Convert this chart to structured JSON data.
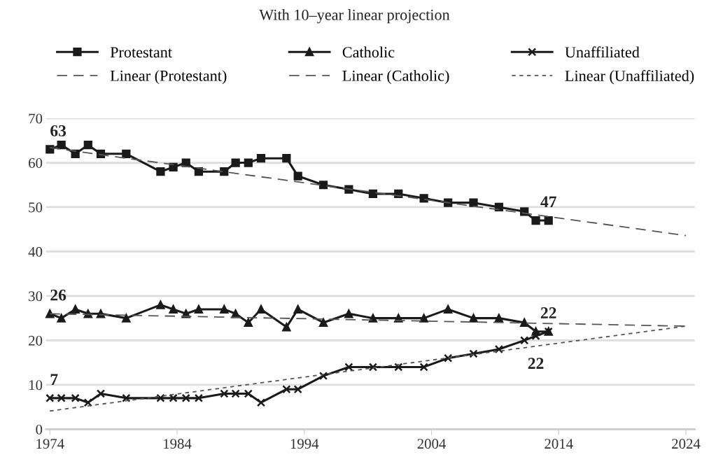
{
  "chart_data": {
    "type": "line",
    "title": "With 10–year linear projection",
    "xlim": [
      1973.7,
      2024.7
    ],
    "xticks": [
      1974,
      1984,
      1994,
      2004,
      2014,
      2024
    ],
    "ylim": [
      0,
      70
    ],
    "yticks": [
      0,
      10,
      20,
      30,
      40,
      50,
      60,
      70
    ],
    "grid": "y",
    "legend": "top",
    "series": [
      {
        "name": "Protestant",
        "color": "#1a1a1a",
        "marker": "square",
        "line_style": "solid",
        "x": [
          1974,
          1974.9,
          1976,
          1977,
          1978,
          1980,
          1982.7,
          1983.7,
          1984.7,
          1985.7,
          1987.7,
          1988.6,
          1989.6,
          1990.6,
          1992.6,
          1993.5,
          1995.5,
          1997.5,
          1999.4,
          2001.4,
          2003.4,
          2005.3,
          2007.3,
          2009.3,
          2011.3,
          2012.2,
          2013.2
        ],
        "values": [
          63,
          64,
          62,
          64,
          62,
          62,
          58,
          59,
          60,
          58,
          58,
          60,
          60,
          61,
          61,
          57,
          55,
          54,
          53,
          53,
          52,
          51,
          51,
          50,
          49,
          47,
          47
        ]
      },
      {
        "name": "Catholic",
        "color": "#1a1a1a",
        "marker": "triangle",
        "line_style": "solid",
        "x": [
          1974,
          1974.9,
          1976,
          1977,
          1978,
          1980,
          1982.7,
          1983.7,
          1984.7,
          1985.7,
          1987.7,
          1988.6,
          1989.6,
          1990.6,
          1992.6,
          1993.5,
          1995.5,
          1997.5,
          1999.4,
          2001.4,
          2003.4,
          2005.3,
          2007.3,
          2009.3,
          2011.3,
          2012.2,
          2013.2
        ],
        "values": [
          26,
          25,
          27,
          26,
          26,
          25,
          28,
          27,
          26,
          27,
          27,
          26,
          24,
          27,
          23,
          27,
          24,
          26,
          25,
          25,
          25,
          27,
          25,
          25,
          24,
          22,
          22
        ]
      },
      {
        "name": "Unaffiliated",
        "color": "#1a1a1a",
        "marker": "cross",
        "line_style": "solid",
        "x": [
          1974,
          1974.9,
          1976,
          1977,
          1978,
          1980,
          1982.7,
          1983.7,
          1984.7,
          1985.7,
          1987.7,
          1988.6,
          1989.6,
          1990.6,
          1992.6,
          1993.5,
          1995.5,
          1997.5,
          1999.4,
          2001.4,
          2003.4,
          2005.3,
          2007.3,
          2009.3,
          2011.3,
          2012.2,
          2013.2
        ],
        "values": [
          7,
          7,
          7,
          6,
          8,
          7,
          7,
          7,
          7,
          7,
          8,
          8,
          8,
          6,
          9,
          9,
          12,
          14,
          14,
          14,
          14,
          16,
          17,
          18,
          20,
          21,
          22
        ]
      },
      {
        "name": "Linear (Protestant)",
        "color": "#555555",
        "marker": "none",
        "line_style": "dashed",
        "x": [
          1974,
          2024
        ],
        "values": [
          63.4,
          43.6
        ]
      },
      {
        "name": "Linear (Catholic)",
        "color": "#555555",
        "marker": "none",
        "line_style": "dashed",
        "x": [
          1974,
          2024
        ],
        "values": [
          26,
          23.2
        ]
      },
      {
        "name": "Linear (Unaffiliated)",
        "color": "#555555",
        "marker": "none",
        "line_style": "dotted",
        "x": [
          1974,
          2024
        ],
        "values": [
          4.1,
          23.2
        ]
      }
    ],
    "annotations": [
      {
        "text": "63",
        "x": 1974,
        "y": 63
      },
      {
        "text": "47",
        "x": 2013.2,
        "y": 47
      },
      {
        "text": "26",
        "x": 1974,
        "y": 26
      },
      {
        "text": "22",
        "x": 2013.2,
        "y": 22
      },
      {
        "text": "7",
        "x": 1974,
        "y": 7
      },
      {
        "text": "22",
        "x": 2012.2,
        "y": 21
      }
    ]
  }
}
